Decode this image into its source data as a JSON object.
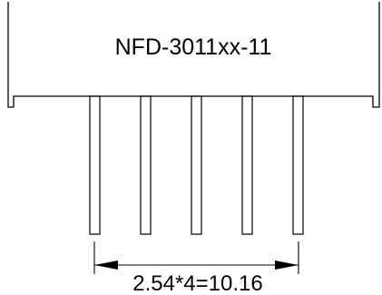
{
  "part_number": "NFD-3011xx-11",
  "pin_count": 5,
  "dimension_label": "2.54*4=10.16",
  "colors": {
    "stroke": "#000000",
    "background": "#ffffff"
  }
}
